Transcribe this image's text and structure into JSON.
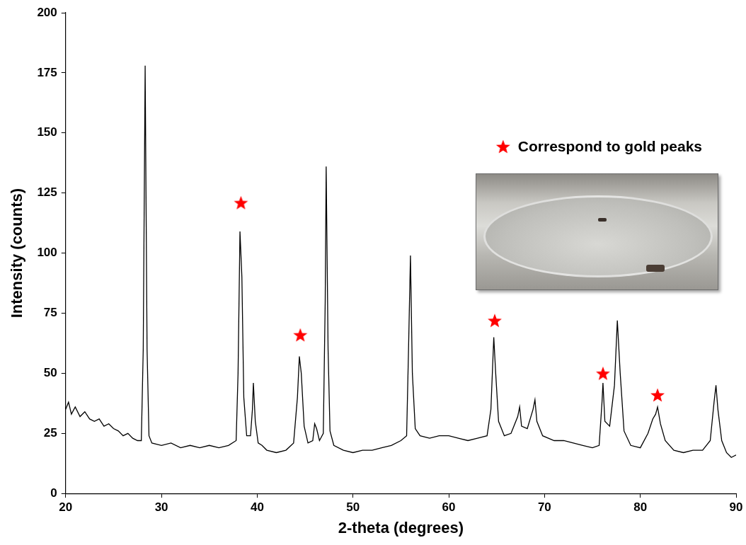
{
  "chart_data": {
    "type": "line",
    "x_label": "2-theta (degrees)",
    "y_label": "Intensity (counts)",
    "xlim": [
      20,
      90
    ],
    "xticks": [
      20,
      30,
      40,
      50,
      60,
      70,
      80,
      90
    ],
    "ylim": [
      0,
      200
    ],
    "yticks": [
      0,
      25,
      50,
      75,
      100,
      125,
      150,
      175,
      200
    ],
    "grid": false,
    "legend": "upper right",
    "series": [
      {
        "type": "line",
        "color": "#000000",
        "x": [
          20.0,
          20.3,
          20.6,
          21.0,
          21.5,
          22.0,
          22.5,
          23.0,
          23.5,
          24.0,
          24.5,
          25.0,
          25.5,
          26.0,
          26.5,
          27.0,
          27.5,
          27.9,
          28.1,
          28.3,
          28.5,
          28.7,
          29.0,
          30.0,
          31.0,
          32.0,
          33.0,
          34.0,
          35.0,
          36.0,
          37.0,
          37.8,
          38.0,
          38.2,
          38.4,
          38.6,
          38.9,
          39.3,
          39.5,
          39.6,
          39.8,
          40.1,
          40.5,
          41.0,
          42.0,
          43.0,
          43.8,
          44.2,
          44.4,
          44.6,
          44.9,
          45.3,
          45.8,
          46.0,
          46.2,
          46.5,
          46.9,
          47.1,
          47.2,
          47.4,
          47.6,
          48.0,
          49.0,
          50.0,
          51.0,
          52.0,
          53.0,
          54.0,
          55.0,
          55.6,
          55.8,
          56.0,
          56.2,
          56.5,
          57.0,
          58.0,
          59.0,
          60.0,
          61.0,
          62.0,
          63.0,
          64.0,
          64.4,
          64.7,
          64.9,
          65.2,
          65.8,
          66.5,
          67.2,
          67.4,
          67.6,
          68.2,
          68.8,
          69.0,
          69.2,
          69.8,
          71.0,
          72.0,
          73.0,
          74.0,
          75.0,
          75.7,
          76.0,
          76.1,
          76.3,
          76.8,
          77.3,
          77.6,
          77.9,
          78.3,
          79.0,
          80.0,
          80.8,
          81.3,
          81.6,
          81.8,
          82.1,
          82.6,
          83.5,
          84.5,
          85.5,
          86.5,
          87.3,
          87.7,
          87.9,
          88.1,
          88.5,
          89.0,
          89.5,
          90.0
        ],
        "values": [
          35,
          38,
          33,
          36,
          32,
          34,
          31,
          30,
          31,
          28,
          29,
          27,
          26,
          24,
          25,
          23,
          22,
          22,
          60,
          178,
          60,
          24,
          21,
          20,
          21,
          19,
          20,
          19,
          20,
          19,
          20,
          22,
          50,
          109,
          90,
          40,
          24,
          24,
          35,
          46,
          30,
          21,
          20,
          18,
          17,
          18,
          21,
          40,
          57,
          50,
          28,
          21,
          22,
          29,
          27,
          22,
          25,
          80,
          136,
          60,
          26,
          20,
          18,
          17,
          18,
          18,
          19,
          20,
          22,
          24,
          60,
          99,
          50,
          27,
          24,
          23,
          24,
          24,
          23,
          22,
          23,
          24,
          35,
          65,
          50,
          30,
          24,
          25,
          32,
          36,
          28,
          27,
          35,
          39,
          30,
          24,
          22,
          22,
          21,
          20,
          19,
          20,
          38,
          46,
          30,
          28,
          45,
          72,
          50,
          26,
          20,
          19,
          25,
          31,
          33,
          36,
          29,
          22,
          18,
          17,
          18,
          18,
          22,
          38,
          45,
          35,
          22,
          17,
          15,
          16
        ]
      },
      {
        "type": "scatter",
        "name": "Correspond to gold peaks",
        "color": "#ff0000",
        "marker": "star",
        "x": [
          38.3,
          44.5,
          64.8,
          76.1,
          81.8
        ],
        "values": [
          121,
          66,
          72,
          50,
          41
        ]
      }
    ]
  }
}
